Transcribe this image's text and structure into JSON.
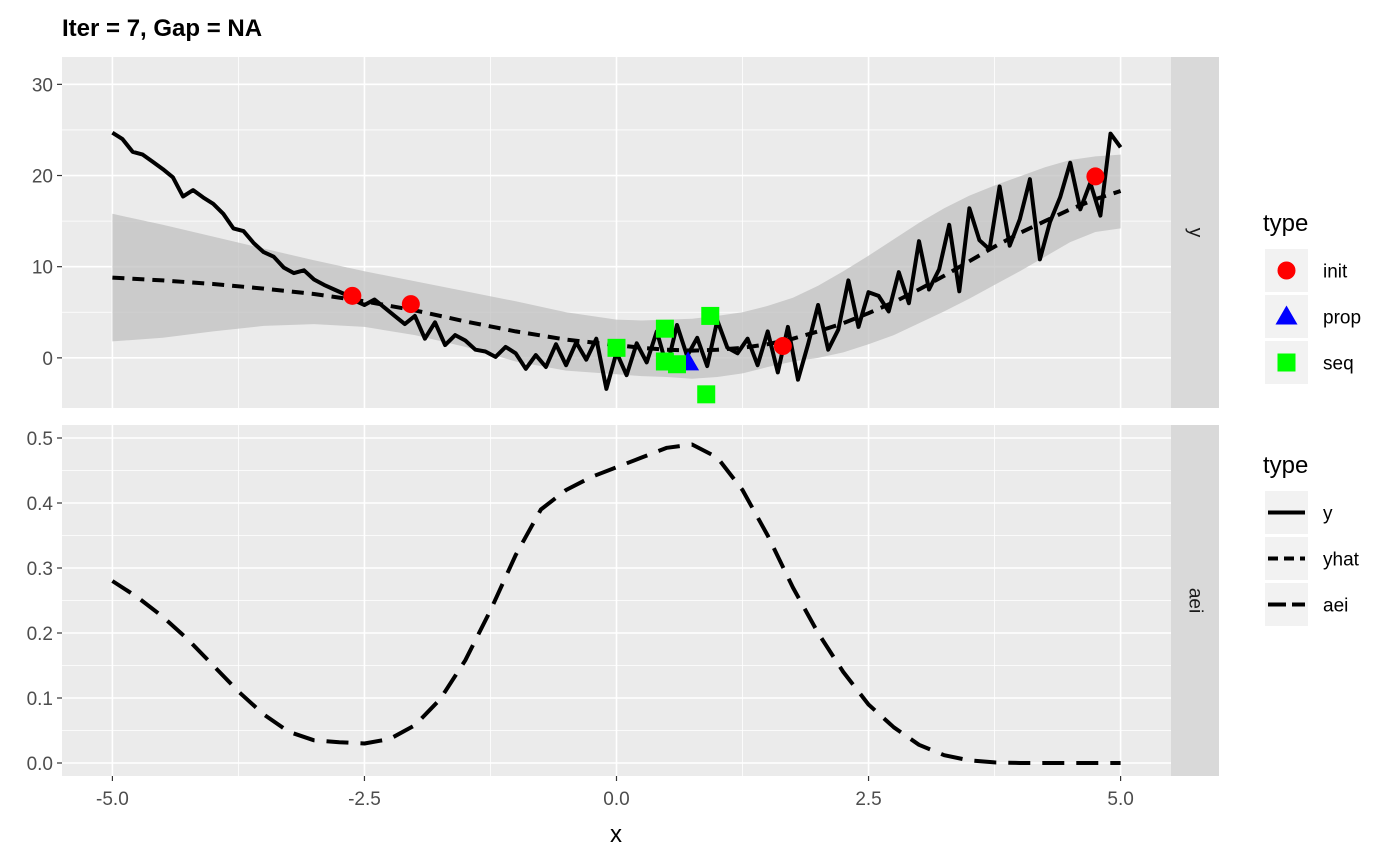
{
  "title": "Iter = 7, Gap = NA",
  "chart_data": {
    "type": "line",
    "title": "Iter = 7, Gap = NA",
    "xlabel": "x",
    "ylabel": "",
    "xlim": [
      -5.5,
      5.5
    ],
    "x_ticks": [
      -5.0,
      -2.5,
      0.0,
      2.5,
      5.0
    ],
    "x_tick_labels": [
      "-5.0",
      "-2.5",
      "0.0",
      "2.5",
      "5.0"
    ],
    "grid": true,
    "panels": [
      {
        "strip": "y",
        "ylim": [
          -5.5,
          33.0
        ],
        "y_ticks": [
          0,
          10,
          20,
          30
        ],
        "y_tick_labels": [
          "0",
          "10",
          "20",
          "30"
        ],
        "series": [
          {
            "name": "y",
            "linetype": "solid",
            "x": [
              -5.0,
              -4.9,
              -4.8,
              -4.7,
              -4.6,
              -4.5,
              -4.4,
              -4.3,
              -4.2,
              -4.1,
              -4.0,
              -3.9,
              -3.8,
              -3.7,
              -3.6,
              -3.5,
              -3.4,
              -3.3,
              -3.2,
              -3.1,
              -3.0,
              -2.9,
              -2.8,
              -2.7,
              -2.6,
              -2.5,
              -2.4,
              -2.3,
              -2.2,
              -2.1,
              -2.0,
              -1.9,
              -1.8,
              -1.7,
              -1.6,
              -1.5,
              -1.4,
              -1.3,
              -1.2,
              -1.1,
              -1.0,
              -0.9,
              -0.8,
              -0.7,
              -0.6,
              -0.5,
              -0.4,
              -0.3,
              -0.2,
              -0.1,
              0.0,
              0.1,
              0.2,
              0.3,
              0.4,
              0.5,
              0.6,
              0.7,
              0.8,
              0.9,
              1.0,
              1.1,
              1.2,
              1.3,
              1.4,
              1.5,
              1.6,
              1.7,
              1.8,
              1.9,
              2.0,
              2.1,
              2.2,
              2.3,
              2.4,
              2.5,
              2.6,
              2.7,
              2.8,
              2.9,
              3.0,
              3.1,
              3.2,
              3.3,
              3.4,
              3.5,
              3.6,
              3.7,
              3.8,
              3.9,
              4.0,
              4.1,
              4.2,
              4.3,
              4.4,
              4.5,
              4.6,
              4.7,
              4.8,
              4.9,
              5.0
            ],
            "values": [
              24.7,
              24.0,
              22.6,
              22.3,
              21.5,
              20.7,
              19.8,
              17.7,
              18.4,
              17.6,
              16.9,
              15.8,
              14.2,
              13.9,
              12.6,
              11.6,
              11.1,
              9.9,
              9.3,
              9.6,
              8.6,
              8.0,
              7.5,
              7.0,
              6.3,
              5.8,
              6.4,
              5.5,
              4.6,
              3.7,
              4.6,
              2.1,
              3.9,
              1.4,
              2.5,
              1.9,
              0.9,
              0.7,
              0.1,
              1.2,
              0.5,
              -1.2,
              0.3,
              -1.0,
              1.5,
              -0.8,
              1.7,
              -0.2,
              2.1,
              -3.4,
              0.6,
              -1.9,
              1.6,
              -0.5,
              2.9,
              -1.0,
              3.6,
              0.2,
              2.2,
              -0.9,
              4.1,
              1.1,
              0.5,
              2.1,
              -0.8,
              2.9,
              -1.6,
              3.4,
              -2.4,
              1.5,
              5.8,
              0.9,
              3.1,
              8.5,
              3.4,
              7.2,
              6.8,
              5.1,
              9.4,
              6.0,
              12.8,
              7.5,
              9.7,
              14.6,
              7.3,
              16.4,
              12.9,
              11.9,
              18.8,
              12.3,
              15.2,
              19.6,
              10.8,
              14.9,
              17.6,
              21.4,
              16.3,
              19.2,
              15.6,
              24.6,
              23.1
            ]
          },
          {
            "name": "yhat",
            "linetype": "dashed",
            "x": [
              -5.0,
              -4.5,
              -4.0,
              -3.5,
              -3.0,
              -2.5,
              -2.0,
              -1.5,
              -1.0,
              -0.5,
              0.0,
              0.25,
              0.5,
              0.75,
              1.0,
              1.25,
              1.5,
              1.75,
              2.0,
              2.25,
              2.5,
              2.75,
              3.0,
              3.25,
              3.5,
              3.75,
              4.0,
              4.25,
              4.5,
              4.75,
              5.0
            ],
            "values": [
              8.8,
              8.5,
              8.1,
              7.6,
              7.0,
              6.2,
              5.2,
              4.0,
              2.9,
              2.0,
              1.4,
              1.1,
              0.9,
              0.8,
              0.9,
              1.1,
              1.5,
              2.1,
              2.9,
              3.8,
              4.9,
              6.1,
              7.5,
              9.0,
              10.6,
              12.2,
              13.7,
              15.0,
              16.3,
              17.4,
              18.3
            ]
          },
          {
            "name": "band_upper",
            "linetype": "ribbon",
            "x": [
              -5.0,
              -4.5,
              -4.0,
              -3.5,
              -3.0,
              -2.5,
              -2.0,
              -1.5,
              -1.0,
              -0.5,
              0.0,
              0.25,
              0.5,
              0.75,
              1.0,
              1.25,
              1.5,
              1.75,
              2.0,
              2.25,
              2.5,
              2.75,
              3.0,
              3.25,
              3.5,
              3.75,
              4.0,
              4.25,
              4.5,
              4.75,
              5.0
            ],
            "values": [
              15.8,
              14.6,
              13.3,
              12.0,
              10.7,
              9.5,
              8.4,
              7.3,
              6.2,
              5.0,
              4.2,
              4.1,
              4.2,
              4.3,
              4.6,
              5.0,
              5.7,
              6.6,
              7.9,
              9.5,
              11.2,
              13.0,
              14.8,
              16.4,
              17.8,
              18.9,
              19.9,
              20.9,
              21.7,
              22.1,
              22.3
            ]
          },
          {
            "name": "band_lower",
            "linetype": "ribbon",
            "x": [
              -5.0,
              -4.5,
              -4.0,
              -3.5,
              -3.0,
              -2.5,
              -2.0,
              -1.5,
              -1.0,
              -0.5,
              0.0,
              0.25,
              0.5,
              0.75,
              1.0,
              1.25,
              1.5,
              1.75,
              2.0,
              2.25,
              2.5,
              2.75,
              3.0,
              3.25,
              3.5,
              3.75,
              4.0,
              4.25,
              4.5,
              4.75,
              5.0
            ],
            "values": [
              1.8,
              2.2,
              2.9,
              3.5,
              3.7,
              3.4,
              2.5,
              1.2,
              -0.4,
              -1.4,
              -1.8,
              -2.0,
              -2.1,
              -2.3,
              -2.1,
              -1.7,
              -1.0,
              -0.4,
              0.0,
              0.6,
              1.5,
              2.5,
              3.8,
              5.1,
              6.5,
              8.0,
              9.5,
              11.1,
              12.7,
              13.8,
              14.2
            ]
          }
        ],
        "points": [
          {
            "type": "init",
            "x": -2.62,
            "y": 6.8
          },
          {
            "type": "init",
            "x": -2.04,
            "y": 5.9
          },
          {
            "type": "init",
            "x": 1.65,
            "y": 1.3
          },
          {
            "type": "init",
            "x": 4.75,
            "y": 19.9
          },
          {
            "type": "prop",
            "x": 0.71,
            "y": -0.5
          },
          {
            "type": "seq",
            "x": 0.0,
            "y": 1.1
          },
          {
            "type": "seq",
            "x": 0.48,
            "y": -0.4
          },
          {
            "type": "seq",
            "x": 0.48,
            "y": 3.2
          },
          {
            "type": "seq",
            "x": 0.6,
            "y": -0.7
          },
          {
            "type": "seq",
            "x": 0.89,
            "y": -4.0
          },
          {
            "type": "seq",
            "x": 0.93,
            "y": 4.6
          }
        ]
      },
      {
        "strip": "aei",
        "ylim": [
          -0.02,
          0.52
        ],
        "y_ticks": [
          0.0,
          0.1,
          0.2,
          0.3,
          0.4,
          0.5
        ],
        "y_tick_labels": [
          "0.0",
          "0.1",
          "0.2",
          "0.3",
          "0.4",
          "0.5"
        ],
        "series": [
          {
            "name": "aei",
            "linetype": "longdash",
            "x": [
              -5.0,
              -4.75,
              -4.5,
              -4.25,
              -4.0,
              -3.75,
              -3.5,
              -3.25,
              -3.0,
              -2.75,
              -2.5,
              -2.25,
              -2.0,
              -1.75,
              -1.5,
              -1.25,
              -1.0,
              -0.75,
              -0.5,
              -0.25,
              0.0,
              0.25,
              0.5,
              0.75,
              1.0,
              1.25,
              1.5,
              1.75,
              2.0,
              2.25,
              2.5,
              2.75,
              3.0,
              3.25,
              3.5,
              3.75,
              4.0,
              4.25,
              4.5,
              4.75,
              5.0
            ],
            "values": [
              0.28,
              0.255,
              0.225,
              0.19,
              0.15,
              0.11,
              0.075,
              0.048,
              0.035,
              0.032,
              0.03,
              0.037,
              0.058,
              0.098,
              0.158,
              0.235,
              0.32,
              0.39,
              0.42,
              0.44,
              0.455,
              0.47,
              0.485,
              0.49,
              0.47,
              0.42,
              0.35,
              0.27,
              0.2,
              0.14,
              0.09,
              0.055,
              0.028,
              0.012,
              0.004,
              0.001,
              0.0,
              0.0,
              0.0,
              0.0,
              0.0
            ]
          }
        ]
      }
    ],
    "legends": [
      {
        "title": "type",
        "entries": [
          {
            "label": "init",
            "shape": "circle",
            "color": "#ff0000"
          },
          {
            "label": "prop",
            "shape": "triangle",
            "color": "#0000ff"
          },
          {
            "label": "seq",
            "shape": "square",
            "color": "#00ff00"
          }
        ]
      },
      {
        "title": "type",
        "entries": [
          {
            "label": "y",
            "linetype": "solid"
          },
          {
            "label": "yhat",
            "linetype": "dashed"
          },
          {
            "label": "aei",
            "linetype": "longdash"
          }
        ]
      }
    ],
    "colors": {
      "panel_background": "#ebebeb",
      "grid": "#ffffff",
      "strip_background": "#d9d9d9",
      "ribbon": "#c0c0c0",
      "line": "#000000",
      "legend_key_background": "#f2f2f2"
    }
  }
}
